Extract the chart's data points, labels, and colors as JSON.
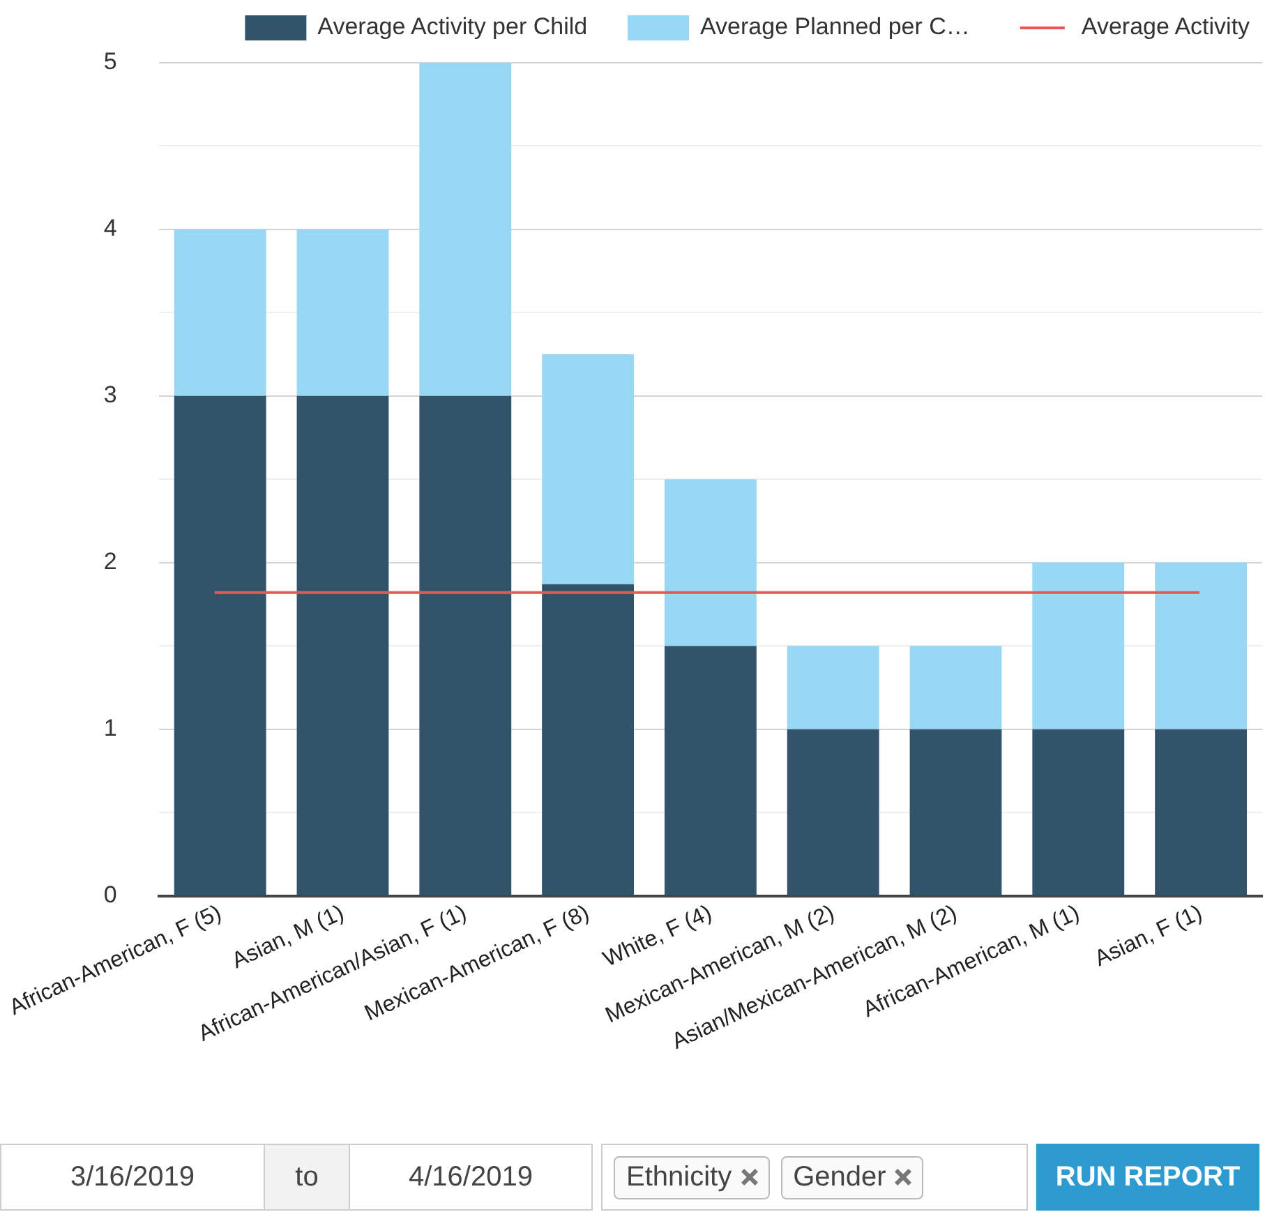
{
  "chart_data": {
    "type": "bar",
    "stacked": true,
    "categories": [
      "African-American, F (5)",
      "Asian, M (1)",
      "African-American/Asian, F (1)",
      "Mexican-American, F (8)",
      "White, F (4)",
      "Mexican-American, M (2)",
      "Asian/Mexican-American, M (2)",
      "African-American, M (1)",
      "Asian, F (1)"
    ],
    "series": [
      {
        "name": "Average Activity per Child",
        "color": "#31546b",
        "values": [
          3,
          3,
          3,
          1.87,
          1.5,
          1,
          1,
          1,
          1
        ]
      },
      {
        "name": "Average Planned per C…",
        "color": "#98d8f5",
        "values": [
          1,
          1,
          2,
          1.38,
          1,
          0.5,
          0.5,
          1,
          1
        ]
      }
    ],
    "ref_lines": [
      {
        "axis": "y",
        "value": 1.82,
        "label": "Average Activity",
        "color": "#e8575a"
      }
    ],
    "ylim": [
      0,
      5
    ],
    "yticks": [
      0,
      {
        "value": 0.5,
        "label": null
      },
      1,
      {
        "value": 1.5,
        "label": null
      },
      2,
      {
        "value": 2.5,
        "label": null
      },
      3,
      {
        "value": 3.5,
        "label": null
      },
      4,
      {
        "value": 4.5,
        "label": null
      },
      5
    ],
    "grid": "y",
    "legend": "top right",
    "annotations": [
      "3/16/2019",
      "to",
      "4/16/2019",
      "Ethnicity",
      "Gender",
      "RUN REPORT"
    ]
  }
}
